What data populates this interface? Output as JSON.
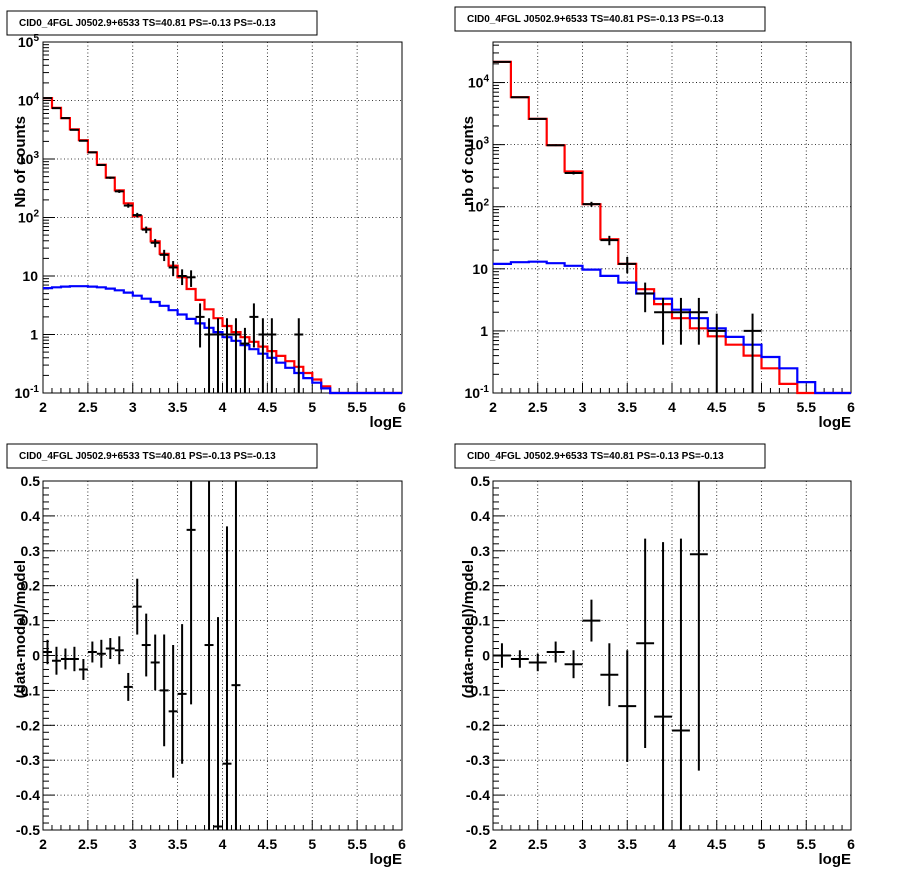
{
  "chart_data": [
    {
      "type": "histogram",
      "title": "CID0_4FGL J0502.9+6533 TS=40.81 PS=-0.13 PS=-0.13",
      "xlabel": "logE",
      "ylabel": "Nb of counts",
      "xlim": [
        2,
        6
      ],
      "ylim": [
        0.1,
        100000
      ],
      "yscale": "log",
      "grid": true,
      "x_ticks": [
        "2",
        "2.5",
        "3",
        "3.5",
        "4",
        "4.5",
        "5",
        "5.5",
        "6"
      ],
      "y_ticks": [
        "10^-1",
        "1",
        "10",
        "10^2",
        "10^3",
        "10^4",
        "10^5"
      ],
      "series": [
        {
          "style": "step",
          "color": "#ff0000",
          "bin_edges": [
            2.0,
            2.1,
            2.2,
            2.3,
            2.4,
            2.5,
            2.6,
            2.7,
            2.8,
            2.9,
            3.0,
            3.1,
            3.2,
            3.3,
            3.4,
            3.5,
            3.6,
            3.7,
            3.8,
            3.9,
            4.0,
            4.1,
            4.2,
            4.3,
            4.4,
            4.5,
            4.6,
            4.7,
            4.8,
            4.9,
            5.0,
            5.1,
            5.2,
            5.3,
            5.4,
            5.5,
            5.6,
            5.7,
            5.8,
            5.9,
            6.0
          ],
          "values": [
            11000,
            7500,
            5000,
            3200,
            2100,
            1300,
            800,
            480,
            290,
            175,
            105,
            64,
            39,
            24,
            15,
            9.5,
            6,
            3.9,
            2.7,
            1.9,
            1.4,
            1.1,
            0.9,
            0.75,
            0.62,
            0.52,
            0.43,
            0.35,
            0.28,
            0.22,
            0.17,
            0.13,
            0.1,
            0.1,
            0.1,
            0.1,
            0.1,
            0.1,
            0.1,
            0.1
          ]
        },
        {
          "style": "step",
          "color": "#0000ff",
          "bin_edges": [
            2.0,
            2.1,
            2.2,
            2.3,
            2.4,
            2.5,
            2.6,
            2.7,
            2.8,
            2.9,
            3.0,
            3.1,
            3.2,
            3.3,
            3.4,
            3.5,
            3.6,
            3.7,
            3.8,
            3.9,
            4.0,
            4.1,
            4.2,
            4.3,
            4.4,
            4.5,
            4.6,
            4.7,
            4.8,
            4.9,
            5.0,
            5.1,
            5.2,
            5.3,
            5.4,
            5.5,
            5.6,
            5.7,
            5.8,
            5.9,
            6.0
          ],
          "values": [
            6.2,
            6.4,
            6.6,
            6.7,
            6.7,
            6.6,
            6.4,
            6.1,
            5.7,
            5.2,
            4.6,
            4.1,
            3.6,
            3.1,
            2.6,
            2.2,
            1.85,
            1.55,
            1.3,
            1.1,
            0.9,
            0.78,
            0.66,
            0.56,
            0.47,
            0.4,
            0.33,
            0.27,
            0.22,
            0.18,
            0.15,
            0.12,
            0.1,
            0.1,
            0.1,
            0.1,
            0.1,
            0.1,
            0.1,
            0.1
          ]
        },
        {
          "style": "errorbar",
          "color": "#000000",
          "x": [
            2.05,
            2.15,
            2.25,
            2.35,
            2.45,
            2.55,
            2.65,
            2.75,
            2.85,
            2.95,
            3.05,
            3.15,
            3.25,
            3.35,
            3.45,
            3.55,
            3.65,
            3.75,
            3.85,
            3.95,
            4.05,
            4.15,
            4.25,
            4.35,
            4.45,
            4.55,
            4.85
          ],
          "xerr": 0.05,
          "y": [
            11000,
            7400,
            5000,
            3150,
            2050,
            1300,
            790,
            480,
            280,
            160,
            110,
            62,
            37,
            23,
            14,
            10,
            9.5,
            2,
            1,
            1,
            1,
            1,
            0.7,
            2,
            1,
            1,
            1
          ],
          "yerr_low": [
            105,
            86,
            71,
            56,
            45,
            36,
            28,
            22,
            17,
            13,
            10,
            8,
            6,
            5,
            4,
            3,
            3,
            1.4,
            0.9,
            0.9,
            0.9,
            0.9,
            0.6,
            1.4,
            0.9,
            0.9,
            0.9
          ],
          "yerr_high": [
            105,
            86,
            71,
            56,
            45,
            36,
            28,
            22,
            17,
            13,
            10,
            8,
            6,
            5,
            4,
            3,
            3,
            1.4,
            0.9,
            0.9,
            0.9,
            0.9,
            0.6,
            1.4,
            0.9,
            0.9,
            0.9
          ]
        }
      ]
    },
    {
      "type": "histogram",
      "title": "CID0_4FGL J0502.9+6533 TS=40.81 PS=-0.13 PS=-0.13",
      "xlabel": "logE",
      "ylabel": "nb of counts",
      "xlim": [
        2,
        6
      ],
      "ylim": [
        0.1,
        45000
      ],
      "yscale": "log",
      "grid": true,
      "x_ticks": [
        "2",
        "2.5",
        "3",
        "3.5",
        "4",
        "4.5",
        "5",
        "5.5",
        "6"
      ],
      "y_ticks": [
        "10^-1",
        "1",
        "10",
        "10^2",
        "10^3",
        "10^4"
      ],
      "series": [
        {
          "style": "step",
          "color": "#ff0000",
          "bin_edges": [
            2.0,
            2.2,
            2.4,
            2.6,
            2.8,
            3.0,
            3.2,
            3.4,
            3.6,
            3.8,
            4.0,
            4.2,
            4.4,
            4.6,
            4.8,
            5.0,
            5.2,
            5.4,
            5.6,
            5.8,
            6.0
          ],
          "values": [
            21500,
            5800,
            2600,
            980,
            370,
            110,
            30,
            12,
            4.7,
            2.7,
            1.6,
            1.1,
            0.82,
            0.6,
            0.4,
            0.25,
            0.14,
            0.1,
            0.1,
            0.1
          ]
        },
        {
          "style": "step",
          "color": "#0000ff",
          "bin_edges": [
            2.0,
            2.2,
            2.4,
            2.6,
            2.8,
            3.0,
            3.2,
            3.4,
            3.6,
            3.8,
            4.0,
            4.2,
            4.4,
            4.6,
            4.8,
            5.0,
            5.2,
            5.4,
            5.6,
            5.8,
            6.0
          ],
          "values": [
            12,
            12.8,
            13,
            12.3,
            11.2,
            9.7,
            7.7,
            6.0,
            4.0,
            3.3,
            2.2,
            1.6,
            1.1,
            0.8,
            0.6,
            0.38,
            0.25,
            0.15,
            0.1,
            0.1
          ]
        },
        {
          "style": "errorbar",
          "color": "#000000",
          "x": [
            2.1,
            2.3,
            2.5,
            2.7,
            2.9,
            3.1,
            3.3,
            3.5,
            3.7,
            3.9,
            4.1,
            4.3,
            4.5,
            4.9
          ],
          "xerr": 0.1,
          "y": [
            21500,
            5800,
            2600,
            980,
            350,
            110,
            29,
            12,
            4,
            2,
            2,
            2,
            1,
            1
          ],
          "yerr_low": [
            147,
            76,
            51,
            31,
            19,
            10,
            5,
            3.5,
            2,
            1.4,
            1.4,
            1.4,
            0.9,
            0.9
          ],
          "yerr_high": [
            147,
            76,
            51,
            31,
            19,
            10,
            5,
            3.5,
            2,
            1.4,
            1.4,
            1.4,
            0.9,
            0.9
          ]
        }
      ]
    },
    {
      "type": "errorbar",
      "title": "CID0_4FGL J0502.9+6533 TS=40.81 PS=-0.13 PS=-0.13",
      "xlabel": "logE",
      "ylabel": "(data-model)/model",
      "xlim": [
        2,
        6
      ],
      "ylim": [
        -0.5,
        0.5
      ],
      "grid": true,
      "x_ticks": [
        "2",
        "2.5",
        "3",
        "3.5",
        "4",
        "4.5",
        "5",
        "5.5",
        "6"
      ],
      "y_ticks": [
        "-0.5",
        "-0.4",
        "-0.3",
        "-0.2",
        "-0.1",
        "0",
        "0.1",
        "0.2",
        "0.3",
        "0.4",
        "0.5"
      ],
      "series": [
        {
          "style": "errorbar",
          "color": "#000000",
          "x": [
            2.05,
            2.15,
            2.25,
            2.35,
            2.45,
            2.55,
            2.65,
            2.75,
            2.85,
            2.95,
            3.05,
            3.15,
            3.25,
            3.35,
            3.45,
            3.55,
            3.65,
            3.85,
            3.95,
            4.05,
            4.15
          ],
          "xerr": 0.05,
          "y": [
            0.01,
            -0.015,
            -0.01,
            -0.01,
            -0.04,
            0.01,
            0.005,
            0.02,
            0.015,
            -0.09,
            0.14,
            0.03,
            -0.02,
            -0.1,
            -0.16,
            -0.11,
            0.36,
            0.03,
            -0.49,
            -0.31,
            -0.085
          ],
          "yerr": [
            0.035,
            0.04,
            0.03,
            0.035,
            0.03,
            0.03,
            0.04,
            0.03,
            0.04,
            0.04,
            0.08,
            0.09,
            0.08,
            0.16,
            0.19,
            0.2,
            0.5,
            0.6,
            0.6,
            0.68,
            0.6
          ]
        }
      ]
    },
    {
      "type": "errorbar",
      "title": "CID0_4FGL J0502.9+6533 TS=40.81 PS=-0.13 PS=-0.13",
      "xlabel": "logE",
      "ylabel": "(data-model)/model",
      "xlim": [
        2,
        6
      ],
      "ylim": [
        -0.5,
        0.5
      ],
      "grid": true,
      "x_ticks": [
        "2",
        "2.5",
        "3",
        "3.5",
        "4",
        "4.5",
        "5",
        "5.5",
        "6"
      ],
      "y_ticks": [
        "-0.5",
        "-0.4",
        "-0.3",
        "-0.2",
        "-0.1",
        "0",
        "0.1",
        "0.2",
        "0.3",
        "0.4",
        "0.5"
      ],
      "series": [
        {
          "style": "errorbar",
          "color": "#000000",
          "x": [
            2.1,
            2.3,
            2.5,
            2.7,
            2.9,
            3.1,
            3.3,
            3.5,
            3.7,
            3.9,
            4.1,
            4.3
          ],
          "xerr": 0.1,
          "y": [
            0.0,
            -0.01,
            -0.02,
            0.01,
            -0.025,
            0.1,
            -0.055,
            -0.145,
            0.035,
            -0.175,
            -0.215,
            0.29
          ],
          "yerr": [
            0.035,
            0.025,
            0.025,
            0.03,
            0.04,
            0.06,
            0.09,
            0.16,
            0.3,
            0.5,
            0.55,
            0.62
          ]
        }
      ]
    }
  ]
}
